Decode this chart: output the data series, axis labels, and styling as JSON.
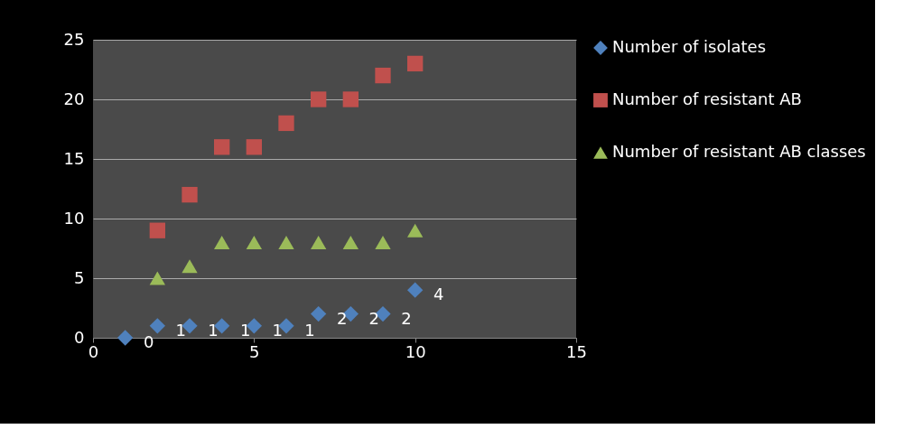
{
  "chart_data": {
    "type": "scatter",
    "xlim": [
      0,
      15
    ],
    "xticks": [
      0,
      5,
      10,
      15
    ],
    "ylim": [
      0,
      25
    ],
    "yticks": [
      0,
      5,
      10,
      15,
      20,
      25
    ],
    "grid": "y",
    "legend": "right",
    "series": [
      {
        "name": "Number of isolates",
        "color": "#4f81bd",
        "marker": "diamond",
        "x": [
          1,
          2,
          3,
          4,
          5,
          6,
          7,
          8,
          9,
          10
        ],
        "values": [
          0,
          1,
          1,
          1,
          1,
          1,
          2,
          2,
          2,
          4
        ],
        "value_labels": [
          "0",
          "1",
          "1",
          "1",
          "1",
          "1",
          "2",
          "2",
          "2",
          "4"
        ]
      },
      {
        "name": "Number of resistant AB",
        "color": "#c0504d",
        "marker": "square",
        "x": [
          2,
          3,
          4,
          5,
          6,
          7,
          8,
          9,
          10
        ],
        "values": [
          9,
          12,
          16,
          16,
          18,
          20,
          20,
          22,
          23
        ]
      },
      {
        "name": "Number of resistant AB classes",
        "color": "#9bbb59",
        "marker": "triangle",
        "x": [
          2,
          3,
          4,
          5,
          6,
          7,
          8,
          9,
          10
        ],
        "values": [
          5,
          6,
          8,
          8,
          8,
          8,
          8,
          8,
          9
        ]
      }
    ]
  }
}
